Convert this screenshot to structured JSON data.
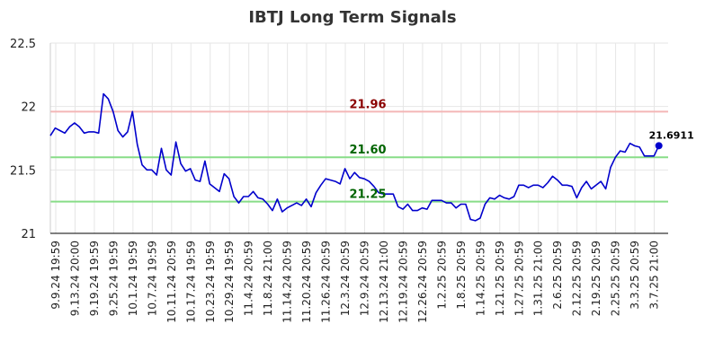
{
  "chart_data": {
    "type": "line",
    "title": "IBTJ Long Term Signals",
    "xlabel": "",
    "ylabel": "",
    "ylim": [
      21,
      22.5
    ],
    "yticks": [
      "21",
      "21.5",
      "22",
      "22.5"
    ],
    "grid": true,
    "x_tick_labels": [
      "9.9.24 19:59",
      "9.13.24 20:00",
      "9.19.24 19:59",
      "9.25.24 19:59",
      "10.1.24 19:59",
      "10.7.24 19:59",
      "10.11.24 20:59",
      "10.17.24 19:59",
      "10.23.24 19:59",
      "10.29.24 19:59",
      "11.4.24 20:59",
      "11.8.24 21:00",
      "11.14.24 20:59",
      "11.20.24 20:59",
      "11.26.24 20:59",
      "12.3.24 20:59",
      "12.9.24 20:59",
      "12.13.24 21:00",
      "12.19.24 20:59",
      "12.26.24 20:59",
      "1.2.25 20:59",
      "1.8.25 20:59",
      "1.14.25 20:59",
      "1.21.25 20:59",
      "1.27.25 20:59",
      "1.31.25 21:00",
      "2.6.25 20:59",
      "2.12.25 20:59",
      "2.19.25 20:59",
      "2.25.25 20:59",
      "3.3.25 20:59",
      "3.7.25 21:00"
    ],
    "reference_lines": [
      {
        "value": 21.96,
        "label": "21.96",
        "line_color": "#f4b6b6",
        "label_color": "#8b0000"
      },
      {
        "value": 21.6,
        "label": "21.60",
        "line_color": "#88dd88",
        "label_color": "#006400"
      },
      {
        "value": 21.25,
        "label": "21.25",
        "line_color": "#88dd88",
        "label_color": "#006400"
      }
    ],
    "series": [
      {
        "color": "#0000cc",
        "values": [
          21.77,
          21.83,
          21.81,
          21.79,
          21.84,
          21.87,
          21.84,
          21.79,
          21.8,
          21.8,
          21.79,
          22.1,
          22.06,
          21.96,
          21.81,
          21.76,
          21.8,
          21.96,
          21.7,
          21.54,
          21.5,
          21.5,
          21.46,
          21.67,
          21.5,
          21.46,
          21.72,
          21.55,
          21.49,
          21.51,
          21.42,
          21.41,
          21.57,
          21.39,
          21.36,
          21.33,
          21.47,
          21.43,
          21.29,
          21.24,
          21.29,
          21.29,
          21.33,
          21.28,
          21.27,
          21.23,
          21.18,
          21.27,
          21.17,
          21.2,
          21.22,
          21.24,
          21.22,
          21.27,
          21.21,
          21.32,
          21.38,
          21.43,
          21.42,
          21.41,
          21.39,
          21.51,
          21.43,
          21.48,
          21.44,
          21.43,
          21.41,
          21.37,
          21.32,
          21.31,
          21.31,
          21.31,
          21.21,
          21.19,
          21.23,
          21.18,
          21.18,
          21.2,
          21.19,
          21.26,
          21.26,
          21.26,
          21.24,
          21.24,
          21.2,
          21.23,
          21.23,
          21.11,
          21.1,
          21.12,
          21.23,
          21.28,
          21.27,
          21.3,
          21.28,
          21.27,
          21.29,
          21.38,
          21.38,
          21.36,
          21.38,
          21.38,
          21.36,
          21.4,
          21.45,
          21.42,
          21.38,
          21.38,
          21.37,
          21.28,
          21.36,
          21.41,
          21.35,
          21.38,
          21.41,
          21.35,
          21.52,
          21.6,
          21.65,
          21.64,
          21.71,
          21.69,
          21.68,
          21.61,
          21.61,
          21.61,
          21.6911
        ]
      }
    ],
    "last_value_label": "21.6911"
  }
}
